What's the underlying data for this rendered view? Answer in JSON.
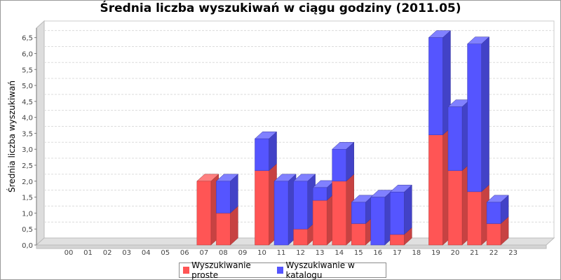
{
  "chart_data": {
    "type": "bar",
    "stacked": true,
    "title": "Średnia liczba wyszukiwań w ciągu godziny (2011.05)",
    "xlabel": "",
    "ylabel": "Średnia liczba wyszukiwań",
    "ylim": [
      0,
      6.8
    ],
    "yticks": [
      "0,0",
      "0,5",
      "1,0",
      "1,5",
      "2,0",
      "2,5",
      "3,0",
      "3,5",
      "4,0",
      "4,5",
      "5,0",
      "5,5",
      "6,0",
      "6,5"
    ],
    "ytick_values": [
      0,
      0.5,
      1,
      1.5,
      2,
      2.5,
      3,
      3.5,
      4,
      4.5,
      5,
      5.5,
      6,
      6.5
    ],
    "grid": true,
    "legend_position": "bottom",
    "categories": [
      "00",
      "01",
      "02",
      "03",
      "04",
      "05",
      "06",
      "07",
      "08",
      "09",
      "10",
      "11",
      "12",
      "13",
      "14",
      "15",
      "16",
      "17",
      "18",
      "19",
      "20",
      "21",
      "22",
      "23"
    ],
    "series": [
      {
        "name": "Wyszukiwanie proste",
        "color": "#ff5555",
        "values": [
          0,
          0,
          0,
          0,
          0,
          0,
          0,
          2.0,
          1.0,
          0,
          2.33,
          0,
          0.5,
          1.4,
          2.0,
          0.67,
          0,
          0.33,
          0,
          3.45,
          2.33,
          1.67,
          0.67,
          0
        ]
      },
      {
        "name": "Wyszukiwanie w katalogu",
        "color": "#5555ff",
        "values": [
          0,
          0,
          0,
          0,
          0,
          0,
          0,
          0,
          1.0,
          0,
          1.0,
          2.0,
          1.5,
          0.4,
          1.0,
          0.67,
          1.5,
          1.33,
          0,
          3.05,
          2.0,
          4.63,
          0.67,
          0
        ]
      }
    ]
  }
}
